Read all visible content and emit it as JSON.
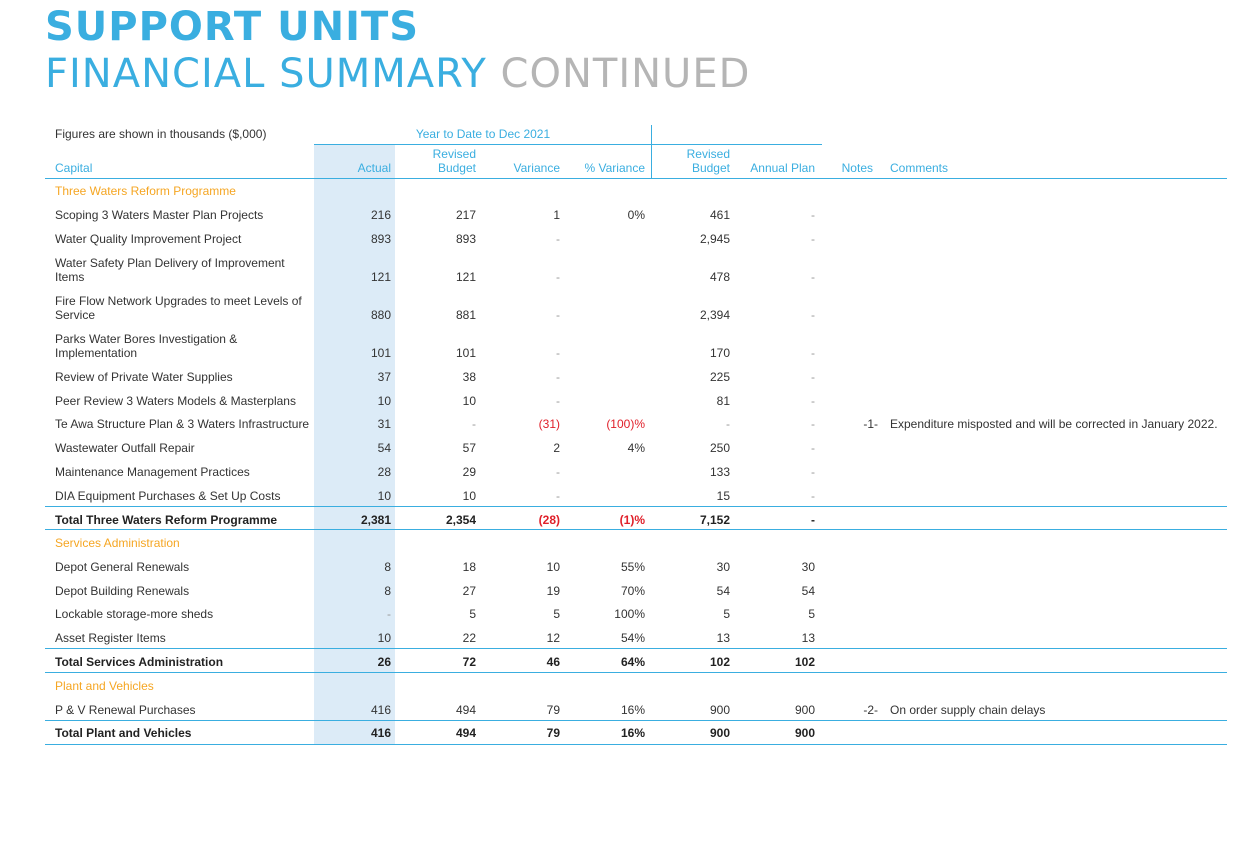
{
  "title_line1": "SUPPORT UNITS",
  "title_line2a": "FINANCIAL SUMMARY",
  "title_line2b": "CONTINUED",
  "figures_note": "Figures are shown in thousands ($,000)",
  "ytd_header": "Year to Date to Dec 2021",
  "columns": {
    "capital": "Capital",
    "actual": "Actual",
    "revised_budget_1": "Revised",
    "revised_budget_2": "Budget",
    "variance": "Variance",
    "pct_variance": "% Variance",
    "revised_budget_b1": "Revised",
    "revised_budget_b2": "Budget",
    "annual_plan": "Annual Plan",
    "notes": "Notes",
    "comments": "Comments"
  },
  "sections": {
    "three_waters": "Three Waters Reform Programme",
    "services_admin": "Services Administration",
    "plant_vehicles": "Plant and Vehicles"
  },
  "rows": [
    {
      "label": "Scoping 3 Waters Master Plan Projects",
      "actual": "216",
      "rb": "217",
      "var": "1",
      "pv": "0%",
      "rb2": "461",
      "ap": "-",
      "note": "",
      "comment": ""
    },
    {
      "label": "Water Quality Improvement Project",
      "actual": "893",
      "rb": "893",
      "var": "-",
      "pv": "",
      "rb2": "2,945",
      "ap": "-",
      "note": "",
      "comment": ""
    },
    {
      "label": "Water Safety Plan Delivery of Improvement Items",
      "actual": "121",
      "rb": "121",
      "var": "-",
      "pv": "",
      "rb2": "478",
      "ap": "-",
      "note": "",
      "comment": ""
    },
    {
      "label": "Fire Flow Network Upgrades to meet Levels of Service",
      "actual": "880",
      "rb": "881",
      "var": "-",
      "pv": "",
      "rb2": "2,394",
      "ap": "-",
      "note": "",
      "comment": ""
    },
    {
      "label": "Parks Water Bores Investigation & Implementation",
      "actual": "101",
      "rb": "101",
      "var": "-",
      "pv": "",
      "rb2": "170",
      "ap": "-",
      "note": "",
      "comment": ""
    },
    {
      "label": "Review of Private Water Supplies",
      "actual": "37",
      "rb": "38",
      "var": "-",
      "pv": "",
      "rb2": "225",
      "ap": "-",
      "note": "",
      "comment": ""
    },
    {
      "label": "Peer Review 3 Waters Models & Masterplans",
      "actual": "10",
      "rb": "10",
      "var": "-",
      "pv": "",
      "rb2": "81",
      "ap": "-",
      "note": "",
      "comment": ""
    },
    {
      "label": "Te Awa Structure Plan & 3 Waters Infrastructure",
      "actual": "31",
      "rb": "-",
      "var": "(31)",
      "pv": "(100)%",
      "rb2": "-",
      "ap": "-",
      "note": "-1-",
      "comment": "Expenditure misposted and will be corrected in January 2022."
    },
    {
      "label": "Wastewater Outfall Repair",
      "actual": "54",
      "rb": "57",
      "var": "2",
      "pv": "4%",
      "rb2": "250",
      "ap": "-",
      "note": "",
      "comment": ""
    },
    {
      "label": "Maintenance Management Practices",
      "actual": "28",
      "rb": "29",
      "var": "-",
      "pv": "",
      "rb2": "133",
      "ap": "-",
      "note": "",
      "comment": ""
    },
    {
      "label": "DIA Equipment Purchases & Set Up Costs",
      "actual": "10",
      "rb": "10",
      "var": "-",
      "pv": "",
      "rb2": "15",
      "ap": "-",
      "note": "",
      "comment": ""
    },
    {
      "label": "Total Three Waters Reform Programme",
      "actual": "2,381",
      "rb": "2,354",
      "var": "(28)",
      "pv": "(1)%",
      "rb2": "7,152",
      "ap": "-",
      "note": "",
      "comment": ""
    },
    {
      "label": "Depot General Renewals",
      "actual": "8",
      "rb": "18",
      "var": "10",
      "pv": "55%",
      "rb2": "30",
      "ap": "30",
      "note": "",
      "comment": ""
    },
    {
      "label": "Depot Building Renewals",
      "actual": "8",
      "rb": "27",
      "var": "19",
      "pv": "70%",
      "rb2": "54",
      "ap": "54",
      "note": "",
      "comment": ""
    },
    {
      "label": "Lockable storage-more sheds",
      "actual": "-",
      "rb": "5",
      "var": "5",
      "pv": "100%",
      "rb2": "5",
      "ap": "5",
      "note": "",
      "comment": ""
    },
    {
      "label": "Asset Register Items",
      "actual": "10",
      "rb": "22",
      "var": "12",
      "pv": "54%",
      "rb2": "13",
      "ap": "13",
      "note": "",
      "comment": ""
    },
    {
      "label": "Total Services Administration",
      "actual": "26",
      "rb": "72",
      "var": "46",
      "pv": "64%",
      "rb2": "102",
      "ap": "102",
      "note": "",
      "comment": ""
    },
    {
      "label": "P & V Renewal Purchases",
      "actual": "416",
      "rb": "494",
      "var": "79",
      "pv": "16%",
      "rb2": "900",
      "ap": "900",
      "note": "-2-",
      "comment": "On order supply chain delays"
    },
    {
      "label": "Total Plant and Vehicles",
      "actual": "416",
      "rb": "494",
      "var": "79",
      "pv": "16%",
      "rb2": "900",
      "ap": "900",
      "note": "",
      "comment": ""
    }
  ]
}
